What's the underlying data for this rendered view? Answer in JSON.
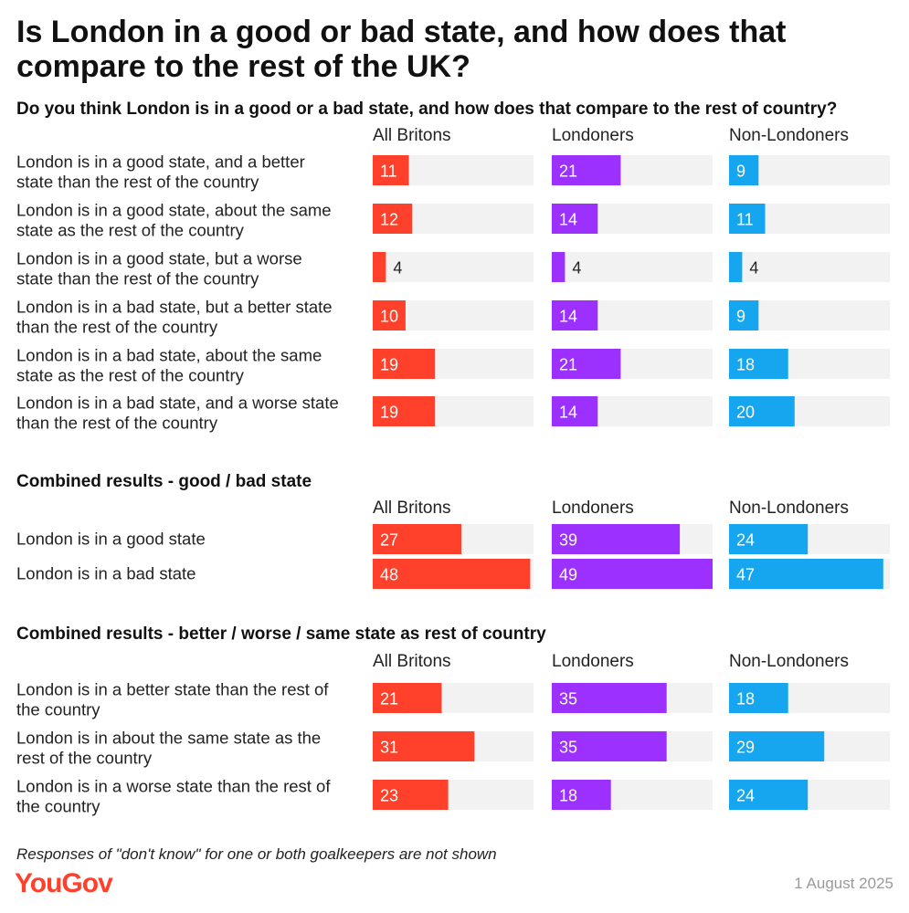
{
  "title_lines": [
    "Is London in a good or bad state, and how does that",
    "compare to the rest of the UK?"
  ],
  "footnote": "Responses of \"don't know\" for one or both goalkeepers are not shown",
  "date": "1 August 2025",
  "logo": "YouGov",
  "colors": {
    "all_britons": "#ff412c",
    "londoners": "#9b30ff",
    "non_londoners": "#16a5ef",
    "track": "#f2f2f2"
  },
  "chart_data": [
    {
      "type": "bar",
      "orientation": "horizontal",
      "title": "Do you think London is in a good or a bad state, and how does that compare to the rest of country?",
      "xlim": [
        0,
        49
      ],
      "categories": [
        [
          "London is in a good state, and a better",
          "state than the rest of the country"
        ],
        [
          "London is in a good state, about the same",
          "state as the rest of the country"
        ],
        [
          "London is in a good state, but a worse",
          "state than the rest of the country"
        ],
        [
          "London is in a bad state, but a better state",
          "than the rest of the country"
        ],
        [
          "London is in a bad state, about the same",
          "state as the rest of the country"
        ],
        [
          "London is in a bad state, and a worse state",
          "than the rest of the country"
        ]
      ],
      "series": [
        {
          "name": "All Britons",
          "values": [
            11,
            12,
            4,
            10,
            19,
            19
          ]
        },
        {
          "name": "Londoners",
          "values": [
            21,
            14,
            4,
            14,
            21,
            14
          ]
        },
        {
          "name": "Non-Londoners",
          "values": [
            9,
            11,
            4,
            9,
            18,
            20
          ]
        }
      ]
    },
    {
      "type": "bar",
      "orientation": "horizontal",
      "title": "Combined results - good / bad state",
      "xlim": [
        0,
        49
      ],
      "categories": [
        [
          "London is in a good state"
        ],
        [
          "London is in a bad state"
        ]
      ],
      "series": [
        {
          "name": "All Britons",
          "values": [
            27,
            48
          ]
        },
        {
          "name": "Londoners",
          "values": [
            39,
            49
          ]
        },
        {
          "name": "Non-Londoners",
          "values": [
            24,
            47
          ]
        }
      ]
    },
    {
      "type": "bar",
      "orientation": "horizontal",
      "title": "Combined results - better / worse / same state as rest of country",
      "xlim": [
        0,
        49
      ],
      "categories": [
        [
          "London is in a better state than the rest of",
          "the country"
        ],
        [
          "London is in about the same state as the",
          "rest of the country"
        ],
        [
          "London is in a worse state than the rest of",
          "the country"
        ]
      ],
      "series": [
        {
          "name": "All Britons",
          "values": [
            21,
            31,
            23
          ]
        },
        {
          "name": "Londoners",
          "values": [
            35,
            35,
            18
          ]
        },
        {
          "name": "Non-Londoners",
          "values": [
            18,
            29,
            24
          ]
        }
      ]
    }
  ]
}
